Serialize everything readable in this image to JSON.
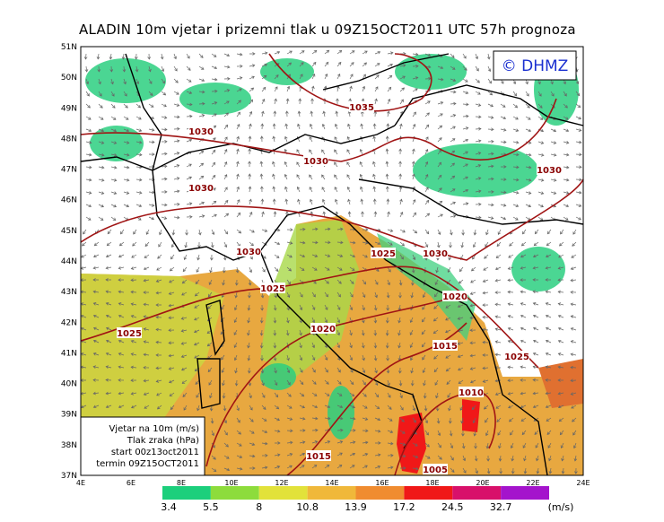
{
  "header": {
    "title": "ALADIN 10m vjetar i prizemni tlak u 09Z15OCT2011 UTC 57h prognoza"
  },
  "logo": "© DHMZ",
  "lat_labels": [
    "51N",
    "50N",
    "49N",
    "48N",
    "47N",
    "46N",
    "45N",
    "44N",
    "43N",
    "42N",
    "41N",
    "40N",
    "39N",
    "38N",
    "37N"
  ],
  "lon_labels": [
    "4E",
    "6E",
    "8E",
    "10E",
    "12E",
    "14E",
    "16E",
    "18E",
    "20E",
    "22E",
    "24E"
  ],
  "isobar_labels": [
    "1035",
    "1030",
    "1030",
    "1030",
    "1030",
    "1030",
    "1030",
    "1025",
    "1025",
    "1025",
    "1025",
    "1020",
    "1020",
    "1015",
    "1015",
    "1010",
    "1005"
  ],
  "legend_box": [
    "Vjetar na 10m (m/s)",
    "Tlak zraka (hPa)",
    "start 00z13oct2011",
    "termin 09Z15OCT2011"
  ],
  "colorbar": {
    "colors": [
      "#1ccf7c",
      "#8ddc3c",
      "#e2e23a",
      "#f0b83a",
      "#f08c30",
      "#f01818",
      "#d8106a",
      "#a414cc"
    ],
    "labels": [
      "3.4",
      "5.5",
      "8",
      "10.8",
      "13.9",
      "17.2",
      "24.5",
      "32.7"
    ],
    "unit": "(m/s)"
  }
}
